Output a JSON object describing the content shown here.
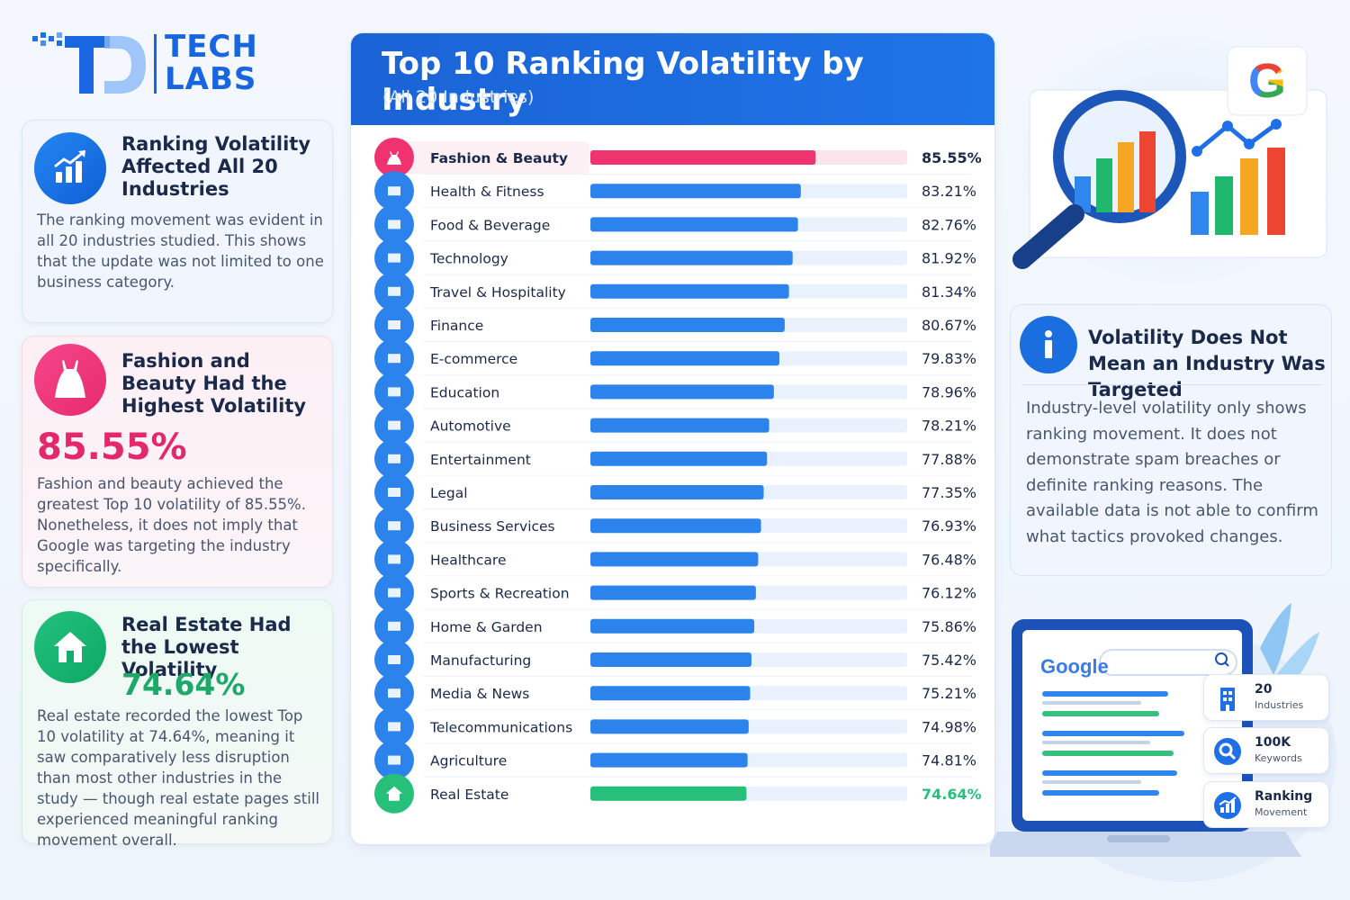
{
  "brand": {
    "name_line1": "TECH",
    "name_line2": "LABS",
    "mark": "TD"
  },
  "left_cards": [
    {
      "title": "Ranking Volatility Affected All 20 Industries",
      "body": "The ranking movement was evident in all 20 industries studied. This shows that the update was not limited to one business category.",
      "icon": "bar-chart-trend-icon"
    },
    {
      "title": "Fashion and Beauty Had the Highest Volatility",
      "highlight": "85.55%",
      "body": "Fashion and beauty achieved the greatest Top 10 volatility of 85.55%. Nonetheless, it does not imply that Google was targeting the industry specifically.",
      "icon": "dress-icon"
    },
    {
      "title": "Real Estate Had the Lowest Volatility",
      "highlight": "74.64%",
      "body": "Real estate recorded the lowest Top 10 volatility at 74.64%, meaning it saw comparatively less disruption than most other industries in the study — though real estate pages still experienced meaningful ranking movement overall.",
      "icon": "house-icon"
    }
  ],
  "chart_data": {
    "type": "bar",
    "orientation": "horizontal",
    "title": "Top 10 Ranking Volatility by Industry",
    "subtitle": "(All 20 Industries)",
    "xlim": [
      0,
      100
    ],
    "categories": [
      "Fashion & Beauty",
      "Health & Fitness",
      "Food & Beverage",
      "Technology",
      "Travel & Hospitality",
      "Finance",
      "E-commerce",
      "Education",
      "Automotive",
      "Entertainment",
      "Legal",
      "Business Services",
      "Healthcare",
      "Sports & Recreation",
      "Home & Garden",
      "Manufacturing",
      "Media & News",
      "Telecommunications",
      "Agriculture",
      "Real Estate"
    ],
    "values": [
      85.55,
      83.21,
      82.76,
      81.92,
      81.34,
      80.67,
      79.83,
      78.96,
      78.21,
      77.88,
      77.35,
      76.93,
      76.48,
      76.12,
      75.86,
      75.42,
      75.21,
      74.98,
      74.81,
      74.64
    ],
    "labels": [
      "85.55%",
      "83.21%",
      "82.76%",
      "81.92%",
      "81.34%",
      "80.67%",
      "79.83%",
      "78.96%",
      "78.21%",
      "77.88%",
      "77.35%",
      "76.93%",
      "76.48%",
      "76.12%",
      "75.86%",
      "75.42%",
      "75.21%",
      "74.98%",
      "74.81%",
      "74.64%"
    ],
    "icons": [
      "dress-icon",
      "dumbbell-icon",
      "fork-knife-icon",
      "chip-icon",
      "airplane-icon",
      "coins-icon",
      "cart-icon",
      "graduation-cap-icon",
      "car-icon",
      "clapperboard-icon",
      "scales-icon",
      "briefcase-icon",
      "medical-cross-icon",
      "ball-icon",
      "leaf-icon",
      "gear-icon",
      "newspaper-icon",
      "antenna-icon",
      "plant-icon",
      "house-icon"
    ],
    "colors": {
      "highest": "#f0336f",
      "default": "#2d83ec",
      "lowest": "#27c07a",
      "track": "#e9f1fc",
      "highest_track": "#fde3ea"
    }
  },
  "info_card": {
    "title": "Volatility Does Not Mean an Industry Was Targeted",
    "body": "Industry-level volatility only shows ranking movement. It does not demonstrate spam breaches or definite ranking reasons. The available data is not able to confirm what tactics provoked changes.",
    "icon": "info-icon"
  },
  "laptop": {
    "search_brand": "Google"
  },
  "stats": [
    {
      "main": "20",
      "sub": "Industries",
      "icon": "building-icon"
    },
    {
      "main": "100K",
      "sub": "Keywords",
      "icon": "search-icon"
    },
    {
      "main": "Ranking",
      "sub": "Movement",
      "icon": "chart-icon"
    }
  ],
  "hero": {
    "badge": "G",
    "icon": "magnifier-chart-icon"
  }
}
